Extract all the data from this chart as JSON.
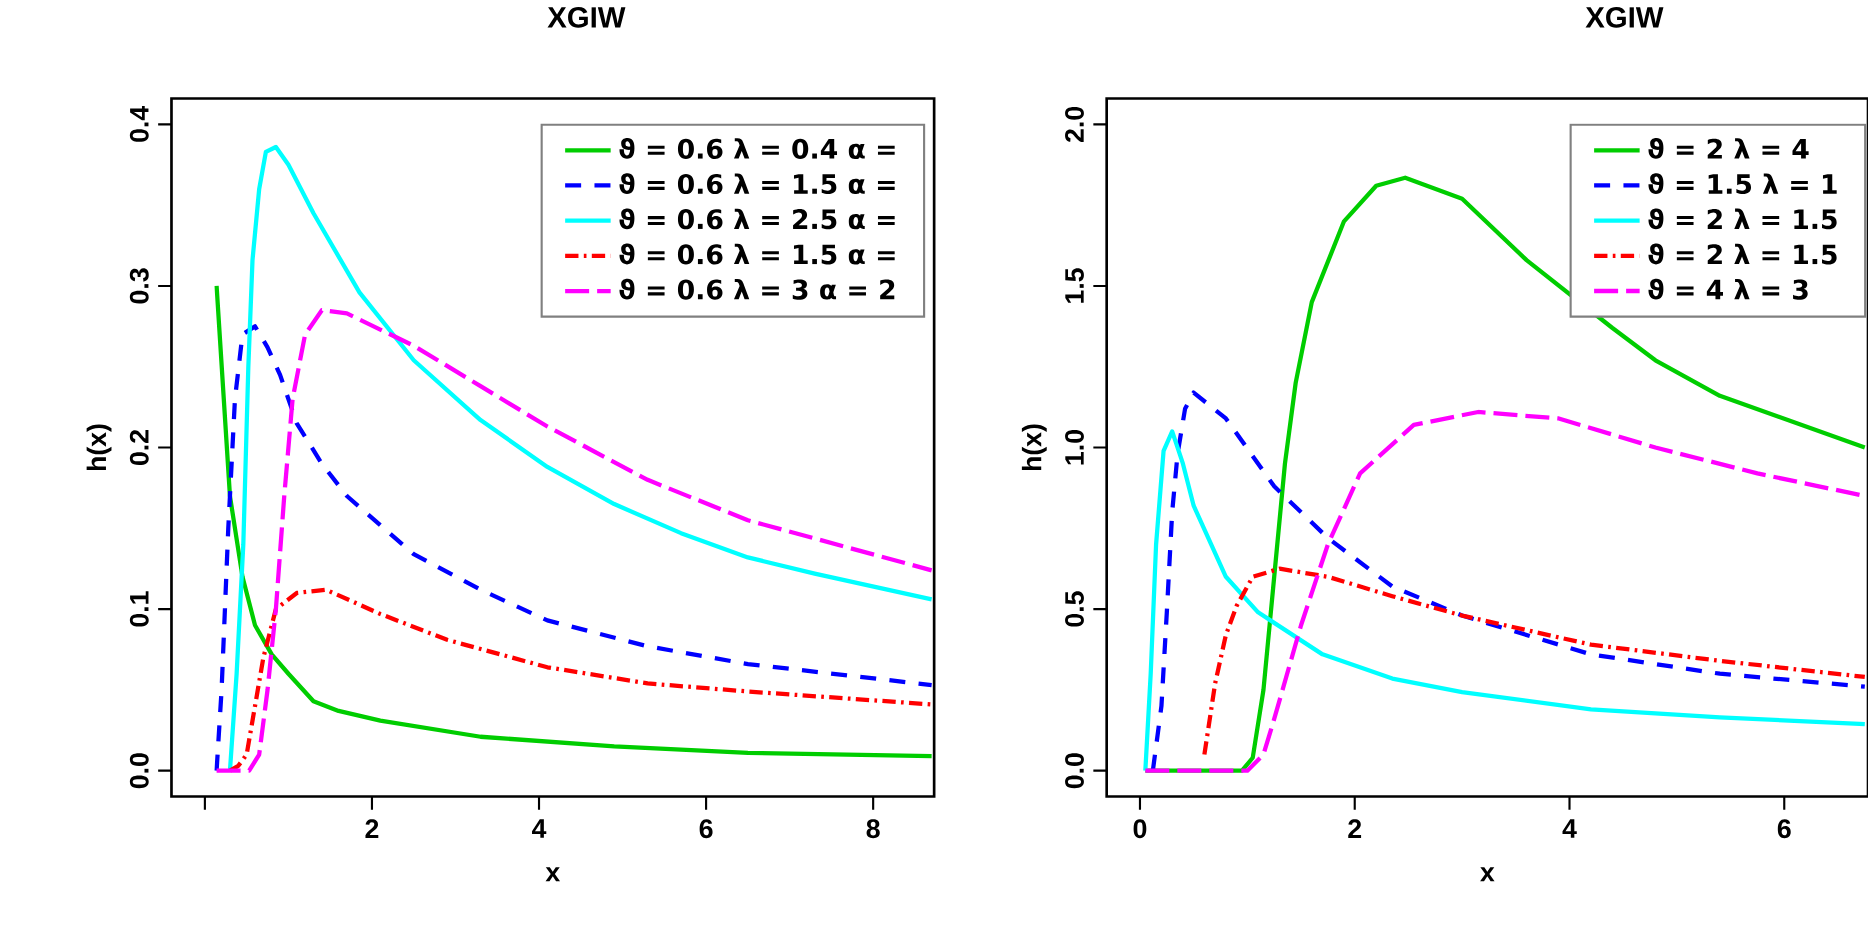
{
  "chart_data": [
    {
      "type": "line",
      "title": "XGIW",
      "xlabel": "x",
      "ylabel": "h(x)",
      "legend": "top right",
      "xlim": [
        -0.4,
        8.73
      ],
      "ylim": [
        -0.016,
        0.416
      ],
      "xticks": [
        {
          "value": 0,
          "label": null
        },
        2,
        4,
        6,
        8
      ],
      "yticks": [
        {
          "value": 0,
          "label": "0.0"
        },
        0.1,
        0.2,
        0.3,
        0.4
      ],
      "series": [
        {
          "name": "ϑ = 0.6  λ = 0.4  α =",
          "color": "#00cd00",
          "line_style": "solid",
          "x": [
            0.14,
            0.3,
            0.45,
            0.6,
            0.8,
            1.0,
            1.3,
            1.6,
            2.1,
            3.3,
            4.9,
            6.5,
            8.7
          ],
          "values": [
            0.3,
            0.17,
            0.12,
            0.09,
            0.072,
            0.06,
            0.043,
            0.037,
            0.031,
            0.021,
            0.015,
            0.011,
            0.009
          ]
        },
        {
          "name": "ϑ = 0.6  λ = 1.5  α =",
          "color": "#0000ff",
          "line_style": "dashed",
          "x": [
            0.14,
            0.2,
            0.28,
            0.36,
            0.45,
            0.6,
            0.75,
            0.9,
            1.1,
            1.4,
            1.7,
            2.5,
            3.3,
            4.1,
            5.3,
            6.5,
            8.7
          ],
          "values": [
            0,
            0.05,
            0.15,
            0.23,
            0.27,
            0.275,
            0.262,
            0.245,
            0.215,
            0.19,
            0.17,
            0.134,
            0.112,
            0.093,
            0.077,
            0.066,
            0.053
          ]
        },
        {
          "name": "ϑ = 0.6  λ = 2.5  α =",
          "color": "#00ffff",
          "line_style": "solid",
          "x": [
            0.3,
            0.38,
            0.46,
            0.52,
            0.57,
            0.65,
            0.73,
            0.85,
            1.0,
            1.3,
            1.85,
            2.5,
            3.3,
            4.1,
            4.9,
            5.7,
            6.5,
            7.3,
            8.7
          ],
          "values": [
            0,
            0.06,
            0.14,
            0.25,
            0.316,
            0.36,
            0.383,
            0.386,
            0.375,
            0.345,
            0.296,
            0.254,
            0.217,
            0.188,
            0.165,
            0.147,
            0.132,
            0.122,
            0.106
          ]
        },
        {
          "name": "ϑ = 0.6  λ = 1.5  α =",
          "color": "#ff0000",
          "line_style": "dashdot",
          "x": [
            0.3,
            0.4,
            0.5,
            0.6,
            0.7,
            0.85,
            1.1,
            1.45,
            2.1,
            2.9,
            4.1,
            5.3,
            6.5,
            8.7
          ],
          "values": [
            0,
            0.003,
            0.01,
            0.04,
            0.07,
            0.1,
            0.11,
            0.112,
            0.097,
            0.081,
            0.064,
            0.054,
            0.049,
            0.041
          ]
        },
        {
          "name": "ϑ = 0.6  λ = 3  α = 2",
          "color": "#ff00ff",
          "line_style": "longdash",
          "x": [
            0.14,
            0.53,
            0.65,
            0.75,
            0.85,
            0.95,
            1.05,
            1.2,
            1.4,
            1.7,
            2.5,
            3.3,
            4.1,
            5.3,
            6.5,
            8.7
          ],
          "values": [
            0,
            0,
            0.01,
            0.05,
            0.1,
            0.17,
            0.23,
            0.27,
            0.285,
            0.283,
            0.263,
            0.238,
            0.213,
            0.18,
            0.155,
            0.124
          ]
        }
      ]
    },
    {
      "type": "line",
      "title": "XGIW",
      "xlabel": "x",
      "ylabel": "h(x)",
      "legend": "top right",
      "xlim": [
        -0.31,
        6.78
      ],
      "ylim": [
        -0.08,
        2.08
      ],
      "xticks": [
        0,
        2,
        4,
        6
      ],
      "yticks": [
        {
          "value": 0,
          "label": "0.0"
        },
        {
          "value": 0.5,
          "label": "0.5"
        },
        {
          "value": 1,
          "label": "1.0"
        },
        {
          "value": 1.5,
          "label": "1.5"
        },
        {
          "value": 2,
          "label": "2.0"
        }
      ],
      "series": [
        {
          "name": "ϑ = 2  λ = 4",
          "color": "#00cd00",
          "line_style": "solid",
          "x": [
            0.05,
            0.95,
            1.05,
            1.15,
            1.25,
            1.35,
            1.45,
            1.6,
            1.9,
            2.2,
            2.47,
            3.0,
            3.6,
            4.4,
            4.8,
            5.4,
            6.75
          ],
          "values": [
            0,
            0,
            0.04,
            0.25,
            0.6,
            0.95,
            1.2,
            1.45,
            1.7,
            1.81,
            1.835,
            1.77,
            1.58,
            1.37,
            1.27,
            1.16,
            1.0
          ]
        },
        {
          "name": "ϑ = 1.5  λ = 1",
          "color": "#0000ff",
          "line_style": "dashed",
          "x": [
            0.12,
            0.2,
            0.25,
            0.3,
            0.35,
            0.42,
            0.5,
            0.8,
            1.25,
            1.75,
            2.35,
            3.0,
            4.2,
            5.4,
            6.75
          ],
          "values": [
            0,
            0.2,
            0.49,
            0.8,
            0.98,
            1.12,
            1.17,
            1.09,
            0.88,
            0.72,
            0.57,
            0.48,
            0.36,
            0.3,
            0.26
          ]
        },
        {
          "name": "ϑ = 2  λ = 1.5",
          "color": "#00ffff",
          "line_style": "solid",
          "x": [
            0.05,
            0.1,
            0.15,
            0.22,
            0.3,
            0.4,
            0.5,
            0.8,
            1.1,
            1.7,
            2.35,
            3.0,
            4.2,
            5.4,
            6.75
          ],
          "values": [
            0,
            0.3,
            0.7,
            0.99,
            1.05,
            0.95,
            0.82,
            0.6,
            0.49,
            0.36,
            0.285,
            0.243,
            0.19,
            0.165,
            0.144
          ]
        },
        {
          "name": "ϑ = 2  λ = 1.5",
          "color": "#ff0000",
          "line_style": "dashdot",
          "x": [
            0.6,
            0.7,
            0.8,
            0.9,
            1.05,
            1.3,
            1.75,
            2.35,
            3.0,
            4.2,
            5.4,
            6.75
          ],
          "values": [
            0.05,
            0.27,
            0.42,
            0.51,
            0.6,
            0.625,
            0.6,
            0.54,
            0.48,
            0.39,
            0.34,
            0.29
          ]
        },
        {
          "name": "ϑ = 4  λ = 3",
          "color": "#ff00ff",
          "line_style": "longdash",
          "x": [
            0.05,
            1.0,
            1.15,
            1.25,
            1.5,
            1.75,
            2.05,
            2.55,
            3.15,
            3.9,
            4.8,
            5.75,
            6.75
          ],
          "values": [
            0,
            0,
            0.05,
            0.16,
            0.45,
            0.7,
            0.92,
            1.07,
            1.11,
            1.09,
            1.0,
            0.92,
            0.85
          ]
        }
      ]
    }
  ]
}
